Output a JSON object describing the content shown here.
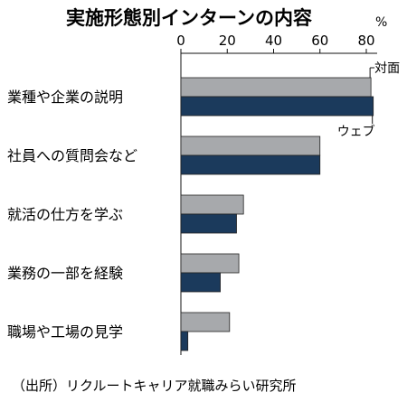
{
  "chart_data": {
    "type": "bar",
    "orientation": "horizontal",
    "title": "実施形態別インターンの内容",
    "unit": "%",
    "xlim": [
      0,
      80
    ],
    "ticks": [
      0,
      20,
      40,
      60,
      80
    ],
    "categories": [
      "業種や企業の説明",
      "社員への質問会など",
      "就活の仕方を学ぶ",
      "業務の一部を経験",
      "職場や工場の見学"
    ],
    "series": [
      {
        "name": "対面",
        "values": [
          82,
          60,
          27,
          25,
          21
        ],
        "color": "#a7a9ac"
      },
      {
        "name": "ウェブ",
        "values": [
          83,
          60,
          24,
          17,
          3
        ],
        "color": "#1b3a5c"
      }
    ],
    "source": "（出所）リクルートキャリア就職みらい研究所"
  }
}
